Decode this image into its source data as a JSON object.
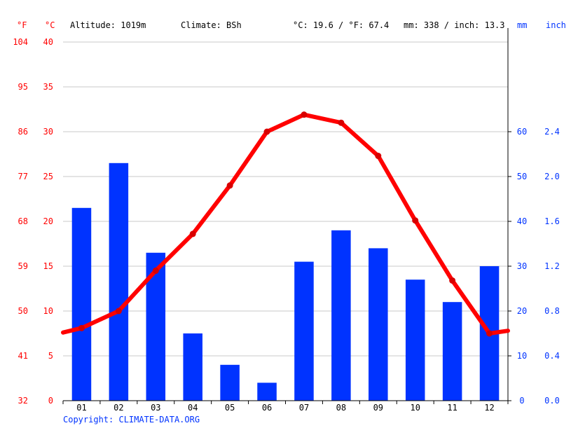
{
  "header": {
    "unit_f": "°F",
    "unit_c": "°C",
    "altitude": "Altitude: 1019m",
    "climate": "Climate: BSh",
    "temp_avg": "°C: 19.6 / °F: 67.4",
    "precip_total": "mm: 338 / inch: 13.3",
    "unit_mm": "mm",
    "unit_inch": "inch"
  },
  "footer": {
    "copyright": "Copyright: CLIMATE-DATA.ORG"
  },
  "colors": {
    "temperature": "#ff0000",
    "precipitation": "#0033ff",
    "grid": "#c8c8c8"
  },
  "chart_data": {
    "type": "bar",
    "categories": [
      "01",
      "02",
      "03",
      "04",
      "05",
      "06",
      "07",
      "08",
      "09",
      "10",
      "11",
      "12"
    ],
    "series": [
      {
        "type": "bar",
        "axis": "right",
        "unit": "mm",
        "values": [
          43,
          53,
          33,
          15,
          8,
          4,
          31,
          38,
          34,
          27,
          22,
          30
        ]
      },
      {
        "type": "line",
        "axis": "left",
        "unit": "°C",
        "values": [
          8.1,
          10.0,
          14.5,
          18.6,
          24.0,
          30.0,
          31.9,
          31.0,
          27.3,
          20.1,
          13.4,
          7.5
        ]
      }
    ],
    "left_axis_c": {
      "ticks": [
        "0",
        "5",
        "10",
        "15",
        "20",
        "25",
        "30",
        "35",
        "40"
      ],
      "range": [
        0,
        40
      ]
    },
    "left_axis_f": {
      "ticks": [
        "32",
        "41",
        "50",
        "59",
        "68",
        "77",
        "86",
        "95",
        "104"
      ]
    },
    "right_axis_mm": {
      "ticks": [
        "0",
        "10",
        "20",
        "30",
        "40",
        "50",
        "60"
      ],
      "range": [
        0,
        80
      ]
    },
    "right_axis_inch": {
      "ticks": [
        "0.0",
        "0.4",
        "0.8",
        "1.2",
        "1.6",
        "2.0",
        "2.4"
      ]
    },
    "temp_line_ends": {
      "start": 7.6,
      "end": 7.8
    },
    "grid": true
  }
}
